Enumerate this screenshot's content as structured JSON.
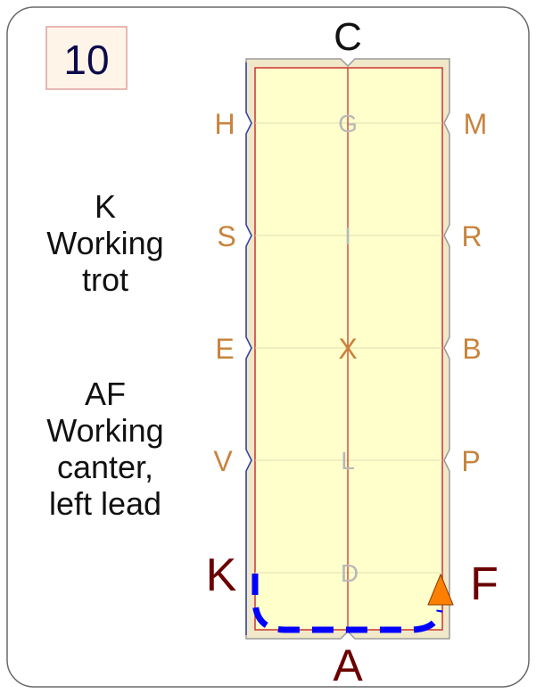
{
  "card": {
    "number": "10"
  },
  "arena": {
    "letters": {
      "top": "C",
      "bottom": "A",
      "left": [
        "H",
        "S",
        "E",
        "V",
        "K"
      ],
      "right": [
        "M",
        "R",
        "B",
        "P",
        "F"
      ],
      "center": [
        "G",
        "I",
        "X",
        "L",
        "D"
      ]
    }
  },
  "instructions": [
    {
      "lines": [
        "K",
        "Working",
        "trot"
      ]
    },
    {
      "lines": [
        "AF",
        "Working",
        "canter,",
        "left lead"
      ]
    }
  ],
  "colors": {
    "arena_fill": "#FFFFCC",
    "arena_border": "#F0E8C8",
    "rail_line": "#CC3333",
    "side_letter": "#C8843C",
    "corner_letter": "#6B0000",
    "center_letter": "#B8B8B8",
    "path": "#0000FF",
    "arrow": "#FF8000",
    "number_box_fill": "#FFF4E8",
    "number_box_border": "#E0A0A0"
  }
}
